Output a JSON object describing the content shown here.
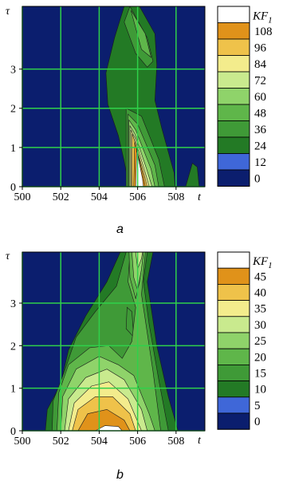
{
  "colors": {
    "background": "#0b1e6e",
    "grid": "#2fd14a",
    "frame": "#000000"
  },
  "chart_data": [
    {
      "type": "contour",
      "panel_label": "a",
      "xlabel": "t",
      "ylabel": "τ",
      "xlim": [
        500,
        509.5
      ],
      "ylim": [
        0,
        4.6
      ],
      "x_ticks": [
        "500",
        "502",
        "504",
        "506",
        "508"
      ],
      "y_ticks": [
        "0",
        "1",
        "2",
        "3"
      ],
      "colorbar": {
        "title": "KF",
        "title_subscript": "1",
        "levels": [
          "108",
          "96",
          "84",
          "72",
          "60",
          "48",
          "36",
          "24",
          "12",
          "0"
        ],
        "colors": [
          "#ffffff",
          "#e0921a",
          "#efc24a",
          "#f3ec8c",
          "#c9ea8e",
          "#8fd36a",
          "#5fb64a",
          "#3f9a37",
          "#237a25",
          "#3f67d8",
          "#0b1e6e"
        ]
      },
      "regions": [
        {
          "level": 12,
          "poly": [
            [
              505.55,
              0
            ],
            [
              505.3,
              0.65
            ],
            [
              505.0,
              1.3
            ],
            [
              504.45,
              2.1
            ],
            [
              504.35,
              2.9
            ],
            [
              504.8,
              3.8
            ],
            [
              505.3,
              4.6
            ],
            [
              506.1,
              4.6
            ],
            [
              506.9,
              3.9
            ],
            [
              507.0,
              3.1
            ],
            [
              506.9,
              2.2
            ],
            [
              507.25,
              1.5
            ],
            [
              507.9,
              0.35
            ],
            [
              507.95,
              0
            ]
          ]
        },
        {
          "level": 12,
          "poly": [
            [
              508.5,
              0
            ],
            [
              508.85,
              0.6
            ],
            [
              509.1,
              0.5
            ],
            [
              509.2,
              0
            ]
          ]
        },
        {
          "level": 24,
          "poly": [
            [
              505.4,
              0
            ],
            [
              505.4,
              2.0
            ],
            [
              506.2,
              1.8
            ],
            [
              507.1,
              0.7
            ],
            [
              507.4,
              0
            ]
          ]
        },
        {
          "level": 24,
          "poly": [
            [
              505.6,
              4.6
            ],
            [
              506.5,
              3.8
            ],
            [
              506.8,
              3.2
            ],
            [
              506.5,
              3.05
            ],
            [
              505.9,
              3.4
            ],
            [
              505.3,
              4.2
            ]
          ]
        },
        {
          "level": 36,
          "poly": [
            [
              505.5,
              0
            ],
            [
              505.5,
              1.85
            ],
            [
              506.0,
              1.6
            ],
            [
              506.9,
              0.55
            ],
            [
              507.1,
              0
            ]
          ]
        },
        {
          "level": 36,
          "poly": [
            [
              505.65,
              4.5
            ],
            [
              506.4,
              3.9
            ],
            [
              506.7,
              3.3
            ],
            [
              506.2,
              3.5
            ]
          ]
        },
        {
          "level": 48,
          "poly": [
            [
              505.55,
              0
            ],
            [
              505.55,
              1.7
            ],
            [
              505.9,
              1.45
            ],
            [
              506.7,
              0.45
            ],
            [
              506.9,
              0
            ]
          ]
        },
        {
          "level": 60,
          "poly": [
            [
              505.6,
              0
            ],
            [
              505.6,
              1.55
            ],
            [
              505.85,
              1.35
            ],
            [
              506.5,
              0.4
            ],
            [
              506.75,
              0
            ]
          ]
        },
        {
          "level": 72,
          "poly": [
            [
              505.65,
              0
            ],
            [
              505.65,
              1.45
            ],
            [
              505.85,
              1.25
            ],
            [
              506.4,
              0.35
            ],
            [
              506.6,
              0
            ]
          ]
        },
        {
          "level": 84,
          "poly": [
            [
              505.7,
              0
            ],
            [
              505.72,
              1.35
            ],
            [
              505.85,
              1.15
            ],
            [
              506.35,
              0.3
            ],
            [
              506.5,
              0
            ]
          ]
        },
        {
          "level": 96,
          "poly": [
            [
              505.8,
              0
            ],
            [
              505.85,
              1.15
            ],
            [
              506.3,
              0.25
            ],
            [
              506.4,
              0
            ]
          ]
        },
        {
          "level": 108,
          "poly": [
            [
              505.9,
              0
            ],
            [
              505.95,
              0.95
            ],
            [
              506.25,
              0.2
            ],
            [
              506.3,
              0
            ]
          ]
        }
      ]
    },
    {
      "type": "contour",
      "panel_label": "b",
      "xlabel": "t",
      "ylabel": "τ",
      "xlim": [
        500,
        509.5
      ],
      "ylim": [
        0,
        4.2
      ],
      "x_ticks": [
        "500",
        "502",
        "504",
        "506",
        "508"
      ],
      "y_ticks": [
        "0",
        "1",
        "2",
        "3"
      ],
      "colorbar": {
        "title": "KF",
        "title_subscript": "1",
        "levels": [
          "45",
          "40",
          "35",
          "30",
          "25",
          "20",
          "15",
          "10",
          "5",
          "0"
        ],
        "colors": [
          "#ffffff",
          "#e0921a",
          "#efc24a",
          "#f3ec8c",
          "#c9ea8e",
          "#8fd36a",
          "#5fb64a",
          "#3f9a37",
          "#237a25",
          "#3f67d8",
          "#0b1e6e"
        ]
      },
      "regions": [
        {
          "level": 5,
          "poly": [
            [
              501.2,
              0
            ],
            [
              501.3,
              0.5
            ],
            [
              502.0,
              1.1
            ],
            [
              502.4,
              1.9
            ],
            [
              503.3,
              2.7
            ],
            [
              504.4,
              3.5
            ],
            [
              505.1,
              4.2
            ],
            [
              506.8,
              4.2
            ],
            [
              506.5,
              3.5
            ],
            [
              507.0,
              2.0
            ],
            [
              507.6,
              0.8
            ],
            [
              508.1,
              0
            ]
          ]
        },
        {
          "level": 10,
          "poly": [
            [
              501.55,
              0
            ],
            [
              501.6,
              0.7
            ],
            [
              502.2,
              1.4
            ],
            [
              502.8,
              2.2
            ],
            [
              503.8,
              2.8
            ],
            [
              504.9,
              3.4
            ],
            [
              505.4,
              4.2
            ],
            [
              506.5,
              4.2
            ],
            [
              506.3,
              3.5
            ],
            [
              506.6,
              2.5
            ],
            [
              507.1,
              1.2
            ],
            [
              507.6,
              0
            ]
          ]
        },
        {
          "level": 15,
          "poly": [
            [
              501.8,
              0
            ],
            [
              501.9,
              0.9
            ],
            [
              502.4,
              1.55
            ],
            [
              503.5,
              1.95
            ],
            [
              504.5,
              2.0
            ],
            [
              505.2,
              1.7
            ],
            [
              505.7,
              2.1
            ],
            [
              505.9,
              2.9
            ],
            [
              505.5,
              3.5
            ],
            [
              505.6,
              4.2
            ],
            [
              506.4,
              4.2
            ],
            [
              506.2,
              3.2
            ],
            [
              506.8,
              1.4
            ],
            [
              507.2,
              0
            ]
          ]
        },
        {
          "level": 20,
          "poly": [
            [
              502.0,
              0
            ],
            [
              502.1,
              0.8
            ],
            [
              502.8,
              1.45
            ],
            [
              504.0,
              1.75
            ],
            [
              505.0,
              1.55
            ],
            [
              505.8,
              1.3
            ],
            [
              506.6,
              0.4
            ],
            [
              506.9,
              0
            ]
          ]
        },
        {
          "level": 25,
          "poly": [
            [
              502.2,
              0
            ],
            [
              502.4,
              0.75
            ],
            [
              503.3,
              1.25
            ],
            [
              504.4,
              1.45
            ],
            [
              505.3,
              1.2
            ],
            [
              506.2,
              0.5
            ],
            [
              506.5,
              0
            ]
          ]
        },
        {
          "level": 30,
          "poly": [
            [
              502.4,
              0
            ],
            [
              502.7,
              0.65
            ],
            [
              503.6,
              1.05
            ],
            [
              504.5,
              1.15
            ],
            [
              505.5,
              0.75
            ],
            [
              506.2,
              0
            ]
          ]
        },
        {
          "level": 35,
          "poly": [
            [
              502.6,
              0
            ],
            [
              502.9,
              0.5
            ],
            [
              503.8,
              0.8
            ],
            [
              504.7,
              0.8
            ],
            [
              505.6,
              0.4
            ],
            [
              505.9,
              0
            ]
          ]
        },
        {
          "level": 40,
          "poly": [
            [
              502.9,
              0
            ],
            [
              503.4,
              0.4
            ],
            [
              504.4,
              0.5
            ],
            [
              505.3,
              0.25
            ],
            [
              505.6,
              0
            ]
          ]
        },
        {
          "level": 45,
          "poly": [
            [
              503.8,
              0
            ],
            [
              504.3,
              0.12
            ],
            [
              505.0,
              0.1
            ],
            [
              505.2,
              0
            ]
          ]
        },
        {
          "level": 15,
          "poly": [
            [
              505.55,
              4.2
            ],
            [
              505.6,
              3.6
            ],
            [
              505.9,
              3.1
            ],
            [
              506.1,
              3.5
            ],
            [
              506.3,
              4.2
            ]
          ]
        },
        {
          "level": 20,
          "poly": [
            [
              505.7,
              4.2
            ],
            [
              505.8,
              3.6
            ],
            [
              506.0,
              3.3
            ],
            [
              506.2,
              3.8
            ],
            [
              506.3,
              4.2
            ]
          ]
        },
        {
          "level": 25,
          "poly": [
            [
              505.9,
              4.2
            ],
            [
              506.0,
              3.8
            ],
            [
              506.2,
              4.05
            ],
            [
              506.25,
              4.2
            ]
          ]
        },
        {
          "level": 10,
          "poly": [
            [
              505.4,
              2.4
            ],
            [
              505.8,
              2.2
            ],
            [
              505.7,
              2.8
            ],
            [
              505.45,
              2.9
            ]
          ]
        }
      ]
    }
  ]
}
